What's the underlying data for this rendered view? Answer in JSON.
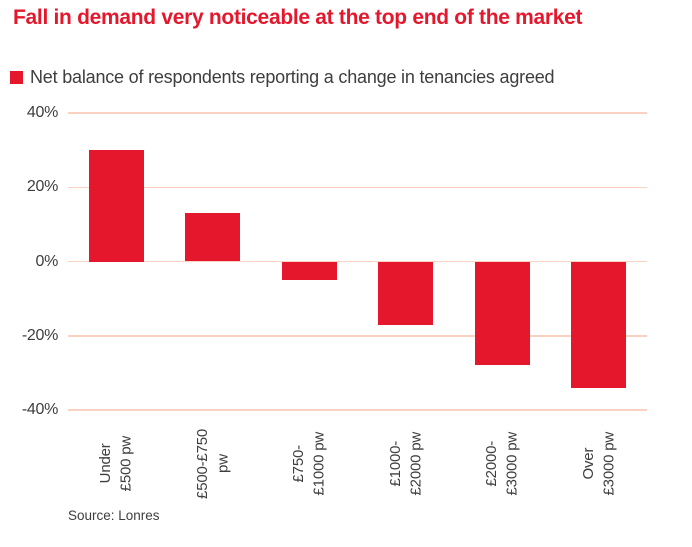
{
  "title": "Fall in demand very noticeable at the top end of the market",
  "legend": {
    "label": "Net balance of respondents reporting a change in tenancies agreed",
    "swatch_color": "#e5172d"
  },
  "source": "Source: Lonres",
  "colors": {
    "accent_red": "#e5172d",
    "gridline": "#f9d2c2",
    "text_dark": "#3e3e3e",
    "background": "#ffffff"
  },
  "chart_data": {
    "type": "bar",
    "title": "Fall in demand very noticeable at the top end of the market",
    "series_name": "Net balance of respondents reporting a change in tenancies agreed",
    "categories": [
      "Under\n£500 pw",
      "£500-£750\npw",
      "£750-\n£1000 pw",
      "£1000-\n£2000 pw",
      "£2000-\n£3000 pw",
      "Over\n£3000 pw"
    ],
    "values": [
      30,
      13,
      -5,
      -17,
      -28,
      -34
    ],
    "unit": "%",
    "xlabel": "",
    "ylabel": "",
    "ylim": [
      -40,
      40
    ],
    "y_ticks": [
      "40%",
      "20%",
      "0%",
      "-20%",
      "-40%"
    ],
    "y_tick_values": [
      40,
      20,
      0,
      -20,
      -40
    ],
    "grid": true,
    "gridline_color": "#f9d2c2",
    "bar_color": "#e5172d",
    "legend_position": "top-left",
    "x_labels_rotation_deg": -90
  }
}
